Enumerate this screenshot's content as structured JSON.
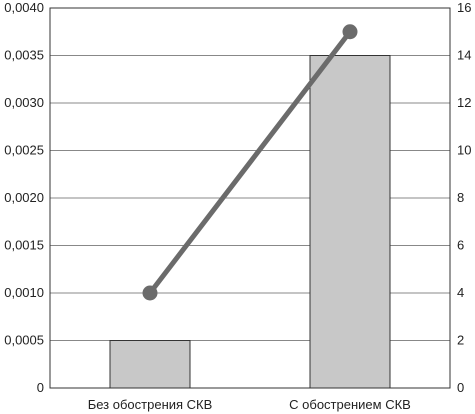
{
  "chart_data": {
    "type": "bar",
    "categories": [
      "Без обострения СКВ",
      "С обострением СКВ"
    ],
    "series": [
      {
        "type": "bar",
        "axis": "left",
        "values": [
          0.0005,
          0.0035
        ],
        "color": "#c8c8c8"
      },
      {
        "type": "line",
        "axis": "right",
        "values": [
          4,
          15
        ],
        "color": "#6b6b6b"
      }
    ],
    "y_left": {
      "ylim": [
        0,
        0.004
      ],
      "ticks": [
        "0",
        "0,0005",
        "0,0010",
        "0,0015",
        "0,0020",
        "0,0025",
        "0,0030",
        "0,0035",
        "0,0040"
      ]
    },
    "y_right": {
      "ylim": [
        0,
        16
      ],
      "ticks": [
        "0",
        "2",
        "4",
        "6",
        "8",
        "10",
        "12",
        "14",
        "16"
      ]
    },
    "grid": true,
    "legend": "none"
  }
}
